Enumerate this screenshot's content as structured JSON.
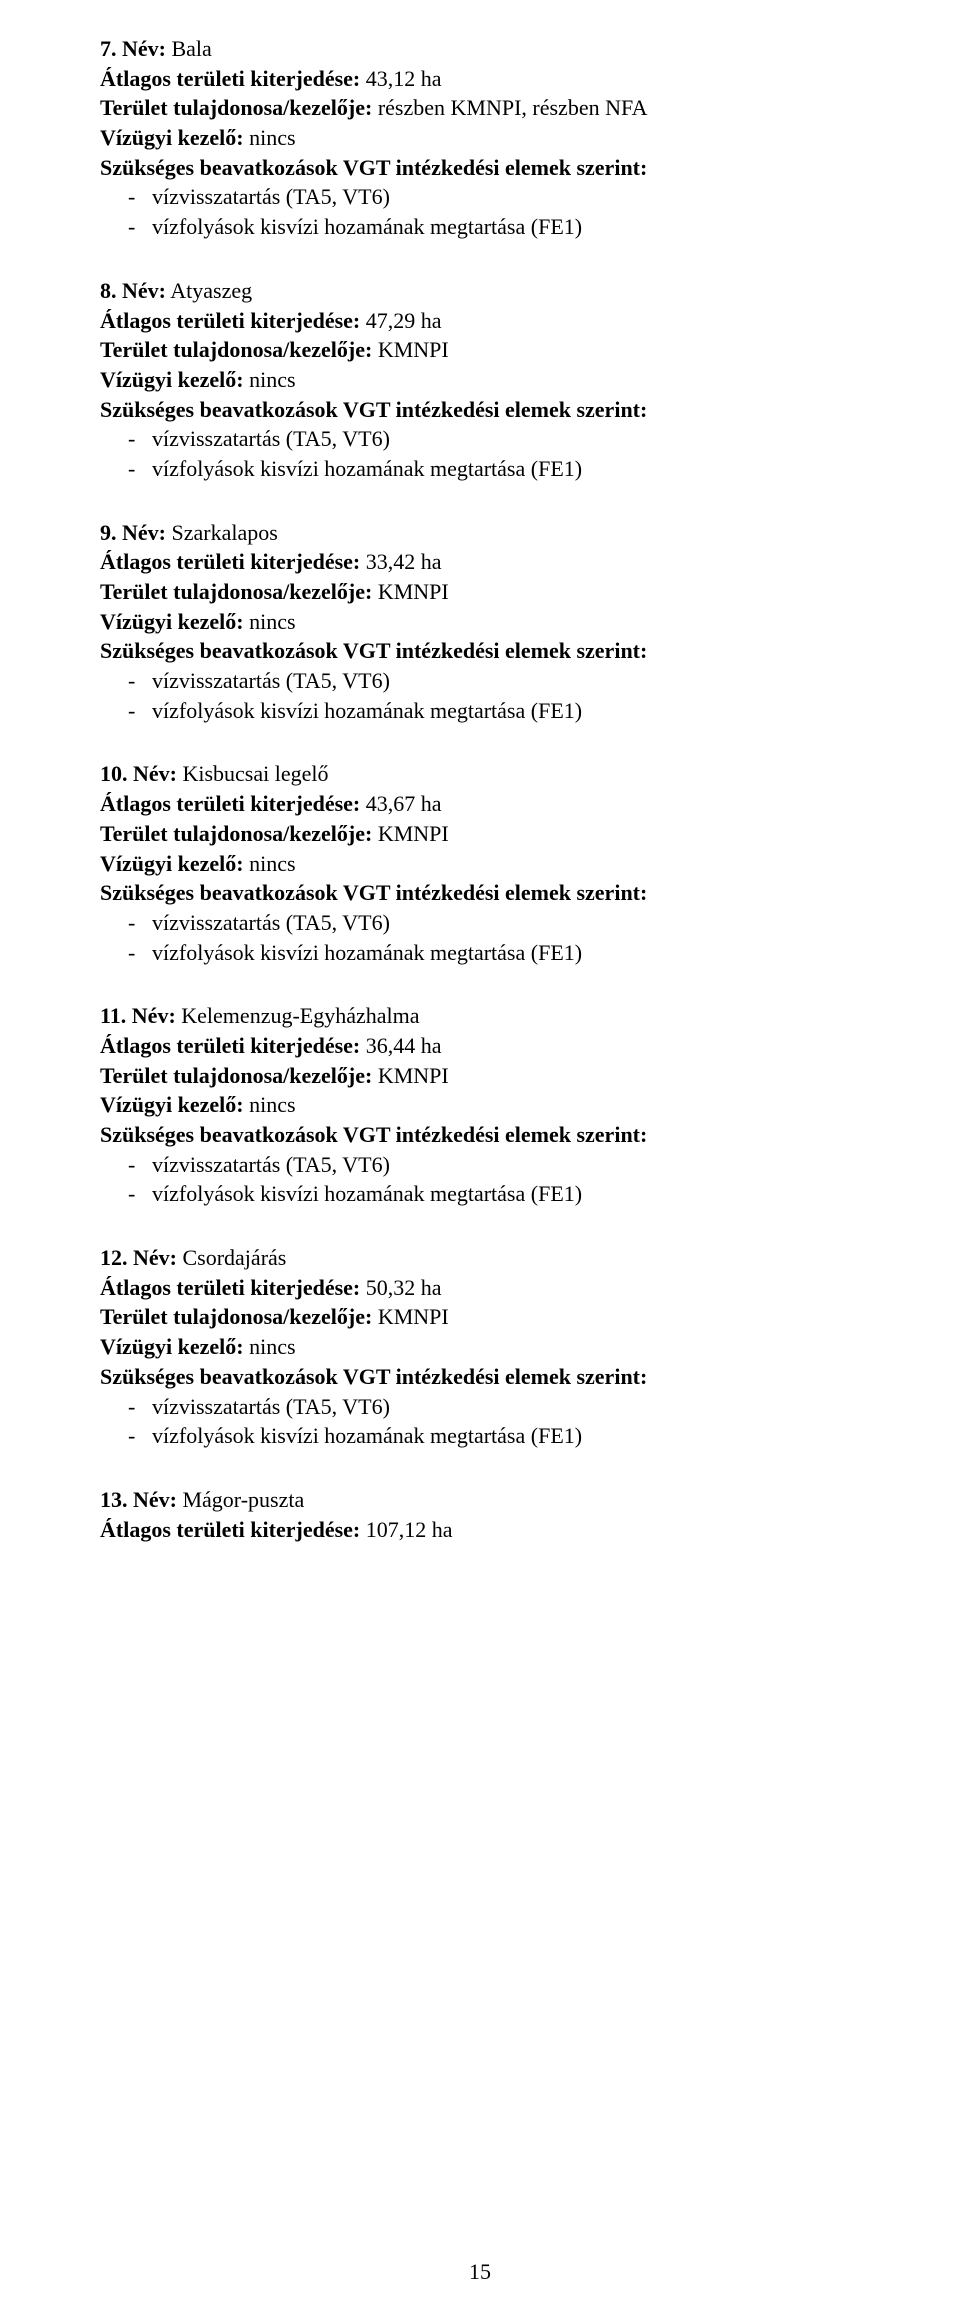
{
  "page_number": "15",
  "labels": {
    "name": "Név:",
    "area": "Átlagos területi kiterjedése:",
    "owner": "Terület tulajdonosa/kezelője:",
    "water_mgr": "Vízügyi kezelő:",
    "interventions": "Szükséges beavatkozások VGT intézkedési elemek szerint:"
  },
  "entries": [
    {
      "num": "7.",
      "name": "Bala",
      "area": "43,12 ha",
      "owner": "részben KMNPI, részben NFA",
      "water_mgr": "nincs",
      "items": [
        "vízvisszatartás (TA5, VT6)",
        "vízfolyások kisvízi hozamának megtartása (FE1)"
      ]
    },
    {
      "num": "8.",
      "name": "Atyaszeg",
      "area": "47,29 ha",
      "owner": "KMNPI",
      "water_mgr": "nincs",
      "items": [
        "vízvisszatartás (TA5, VT6)",
        "vízfolyások kisvízi hozamának megtartása (FE1)"
      ]
    },
    {
      "num": "9.",
      "name": "Szarkalapos",
      "area": "33,42 ha",
      "owner": "KMNPI",
      "water_mgr": "nincs",
      "items": [
        "vízvisszatartás (TA5, VT6)",
        "vízfolyások kisvízi hozamának megtartása (FE1)"
      ]
    },
    {
      "num": "10.",
      "name": "Kisbucsai legelő",
      "area": "43,67 ha",
      "owner": "KMNPI",
      "water_mgr": "nincs",
      "items": [
        "vízvisszatartás (TA5, VT6)",
        "vízfolyások kisvízi hozamának megtartása (FE1)"
      ]
    },
    {
      "num": "11.",
      "name": "Kelemenzug-Egyházhalma",
      "area": "36,44 ha",
      "owner": "KMNPI",
      "water_mgr": "nincs",
      "items": [
        "vízvisszatartás (TA5, VT6)",
        "vízfolyások kisvízi hozamának megtartása (FE1)"
      ]
    },
    {
      "num": "12.",
      "name": "Csordajárás",
      "area": "50,32 ha",
      "owner": "KMNPI",
      "water_mgr": "nincs",
      "items": [
        "vízvisszatartás (TA5, VT6)",
        "vízfolyások kisvízi hozamának megtartása (FE1)"
      ]
    },
    {
      "num": "13.",
      "name": "Mágor-puszta",
      "area": "107,12 ha"
    }
  ]
}
